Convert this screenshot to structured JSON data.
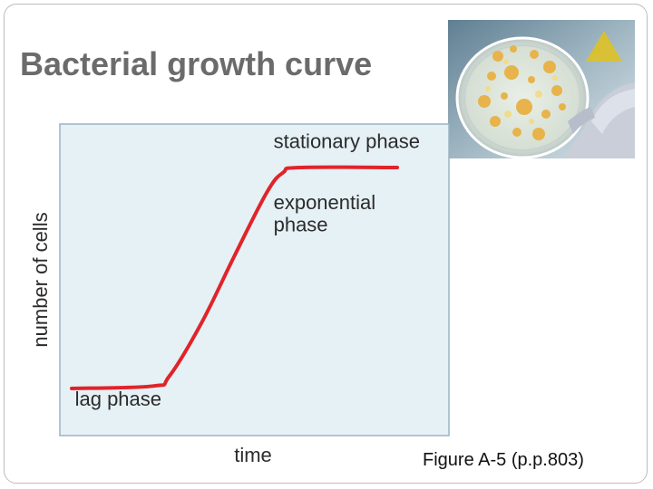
{
  "slide": {
    "title": "Bacterial growth curve",
    "caption": "Figure A-5 (p.p.803)",
    "photo_icon": "petri-dish-photo"
  },
  "colors": {
    "plot_background": "#e6f1f6",
    "plot_border": "#9cb4c2",
    "curve": "#e0242a",
    "title": "#6b6b6b",
    "label": "#2b2b2b"
  },
  "chart_data": {
    "type": "line",
    "title": "",
    "xlabel": "time",
    "ylabel": "number of cells",
    "xlim": [
      0,
      100
    ],
    "ylim": [
      0,
      100
    ],
    "grid": false,
    "series": [
      {
        "name": "",
        "x": [
          0,
          25,
          30,
          40,
          50,
          60,
          65,
          70,
          100
        ],
        "y": [
          0,
          1,
          5,
          27,
          54,
          80,
          88,
          90,
          90
        ]
      }
    ],
    "annotations": [
      {
        "text": "stationary phase",
        "x": 62,
        "y": 98
      },
      {
        "text": "exponential",
        "x": 62,
        "y": 73
      },
      {
        "text": "phase",
        "x": 62,
        "y": 64
      },
      {
        "text": "lag phase",
        "x": 1,
        "y": -7
      }
    ]
  }
}
